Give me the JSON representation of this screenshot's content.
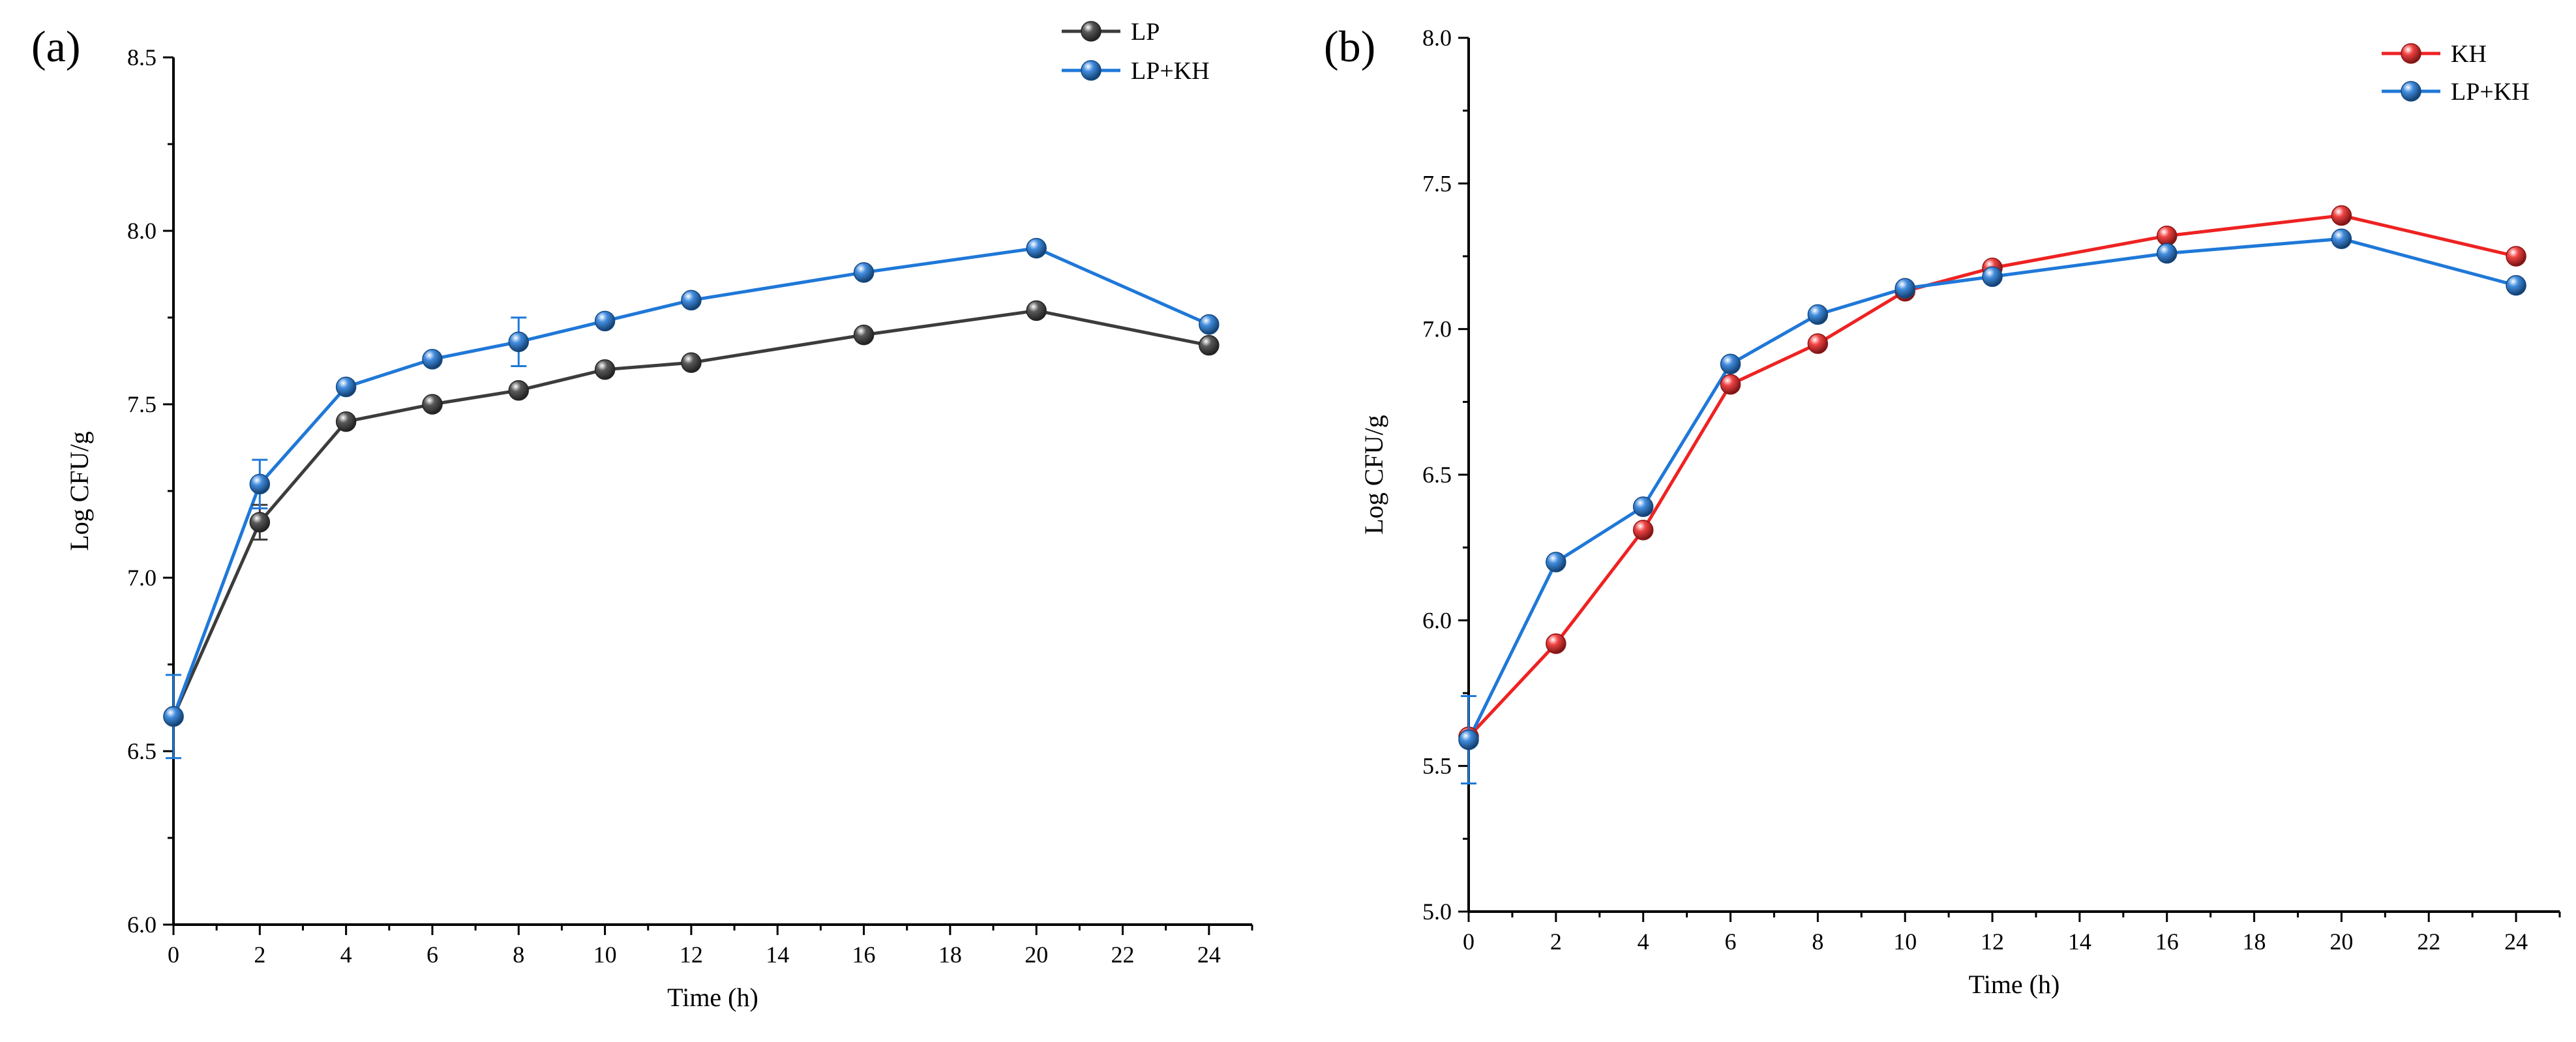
{
  "chart_data": [
    {
      "panel": "(a)",
      "type": "line",
      "xlabel": "Time (h)",
      "ylabel": "Log CFU/g",
      "xlim": [
        0,
        25
      ],
      "ylim": [
        6.0,
        8.5
      ],
      "xticks": [
        0,
        2,
        4,
        6,
        8,
        10,
        12,
        14,
        16,
        18,
        20,
        22,
        24
      ],
      "yticks": [
        6.0,
        6.5,
        7.0,
        7.5,
        8.0,
        8.5
      ],
      "ytick_labels": [
        "6.0",
        "6.5",
        "7.0",
        "7.5",
        "8.0",
        "8.5"
      ],
      "legend_position": "top-right",
      "series": [
        {
          "name": "LP",
          "color": "#3c3c3c",
          "x": [
            0,
            2,
            4,
            6,
            8,
            10,
            12,
            16,
            20,
            24
          ],
          "values": [
            6.6,
            7.16,
            7.45,
            7.5,
            7.54,
            7.6,
            7.62,
            7.7,
            7.77,
            7.67
          ],
          "errors": [
            0.02,
            0.05,
            0.02,
            0.02,
            0.02,
            0.02,
            0.02,
            0.02,
            0.02,
            0.02
          ]
        },
        {
          "name": "LP+KH",
          "color": "#1f78d8",
          "x": [
            0,
            2,
            4,
            6,
            8,
            10,
            12,
            16,
            20,
            24
          ],
          "values": [
            6.6,
            7.27,
            7.55,
            7.63,
            7.68,
            7.74,
            7.8,
            7.88,
            7.95,
            7.73
          ],
          "errors": [
            0.12,
            0.07,
            0.02,
            0.02,
            0.07,
            0.02,
            0.02,
            0.02,
            0.02,
            0.03
          ]
        }
      ]
    },
    {
      "panel": "(b)",
      "type": "line",
      "xlabel": "Time (h)",
      "ylabel": "Log CFU/g",
      "xlim": [
        0,
        25
      ],
      "ylim": [
        5.0,
        8.0
      ],
      "xticks": [
        0,
        2,
        4,
        6,
        8,
        10,
        12,
        14,
        16,
        18,
        20,
        22,
        24
      ],
      "yticks": [
        5.0,
        5.5,
        6.0,
        6.5,
        7.0,
        7.5,
        8.0
      ],
      "ytick_labels": [
        "5.0",
        "5.5",
        "6.0",
        "6.5",
        "7.0",
        "7.5",
        "8.0"
      ],
      "legend_position": "top-right",
      "series": [
        {
          "name": "KH",
          "color": "#ee2222",
          "x": [
            0,
            2,
            4,
            6,
            8,
            10,
            12,
            16,
            20,
            24
          ],
          "values": [
            5.6,
            5.92,
            6.31,
            6.81,
            6.95,
            7.13,
            7.21,
            7.32,
            7.39,
            7.25
          ],
          "errors": [
            0.02,
            0.02,
            0.02,
            0.02,
            0.02,
            0.02,
            0.02,
            0.02,
            0.02,
            0.02
          ]
        },
        {
          "name": "LP+KH",
          "color": "#1f78d8",
          "x": [
            0,
            2,
            4,
            6,
            8,
            10,
            12,
            16,
            20,
            24
          ],
          "values": [
            5.59,
            6.2,
            6.39,
            6.88,
            7.05,
            7.14,
            7.18,
            7.26,
            7.31,
            7.15
          ],
          "errors": [
            0.15,
            0.02,
            0.02,
            0.02,
            0.02,
            0.02,
            0.02,
            0.02,
            0.02,
            0.02
          ]
        }
      ]
    }
  ]
}
